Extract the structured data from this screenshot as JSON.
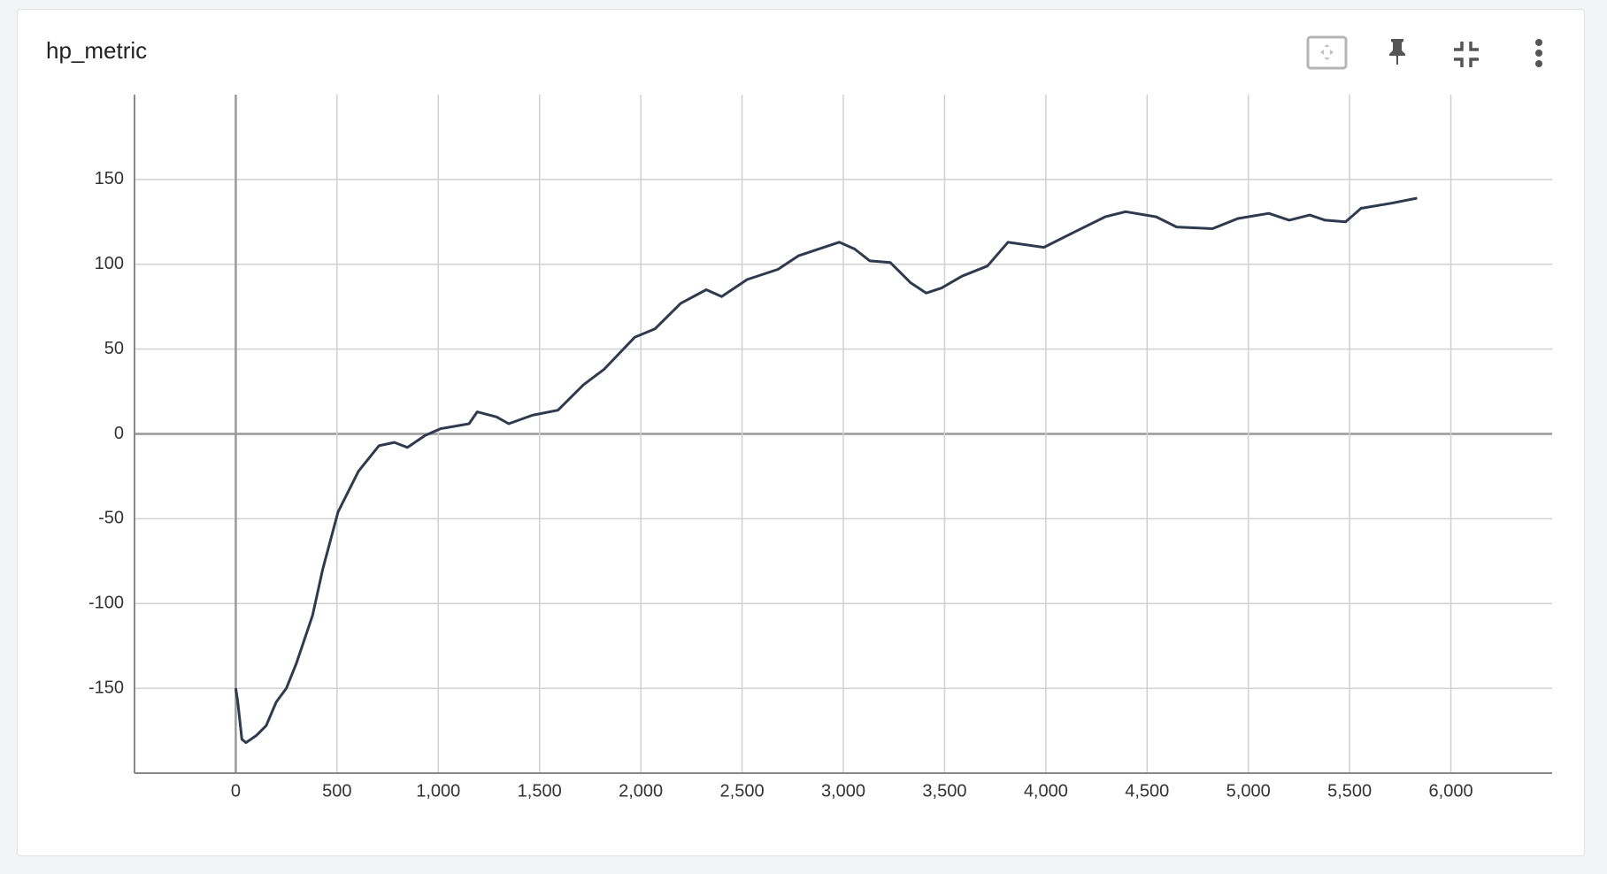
{
  "chart_data": {
    "type": "line",
    "title": "hp_metric",
    "x": [
      0,
      10,
      30,
      50,
      100,
      150,
      200,
      250,
      300,
      379,
      429,
      505,
      606,
      707,
      783,
      848,
      934,
      1010,
      1152,
      1192,
      1288,
      1348,
      1465,
      1591,
      1717,
      1818,
      1970,
      2071,
      2197,
      2323,
      2399,
      2525,
      2677,
      2778,
      2904,
      2980,
      3056,
      3131,
      3232,
      3333,
      3409,
      3485,
      3586,
      3712,
      3813,
      3990,
      4141,
      4293,
      4394,
      4545,
      4646,
      4823,
      4949,
      5101,
      5202,
      5303,
      5379,
      5480,
      5556,
      5707,
      5833
    ],
    "series": [
      {
        "name": "hp_metric",
        "color": "#2e3a4d",
        "values": [
          -150,
          -158,
          -180,
          -182,
          -178,
          -172,
          -158,
          -150,
          -135,
          -107,
          -80,
          -46,
          -22,
          -7,
          -5,
          -8,
          -1,
          3,
          6,
          13,
          10,
          6,
          11,
          14,
          29,
          38,
          57,
          62,
          77,
          85,
          81,
          91,
          97,
          105,
          110,
          113,
          109,
          102,
          101,
          89,
          83,
          86,
          93,
          99,
          113,
          110,
          119,
          128,
          131,
          128,
          122,
          121,
          127,
          130,
          126,
          129,
          126,
          125,
          133,
          136,
          139
        ]
      }
    ],
    "xlim": [
      -500,
      6500
    ],
    "ylim": [
      -200,
      200
    ],
    "xticks": [
      0,
      500,
      {
        "value": 1000,
        "label": "1,000"
      },
      {
        "value": 1500,
        "label": "1,500"
      },
      {
        "value": 2000,
        "label": "2,000"
      },
      {
        "value": 2500,
        "label": "2,500"
      },
      {
        "value": 3000,
        "label": "3,000"
      },
      {
        "value": 3500,
        "label": "3,500"
      },
      {
        "value": 4000,
        "label": "4,000"
      },
      {
        "value": 4500,
        "label": "4,500"
      },
      {
        "value": 5000,
        "label": "5,000"
      },
      {
        "value": 5500,
        "label": "5,500"
      },
      {
        "value": 6000,
        "label": "6,000"
      }
    ],
    "yticks": [
      -150,
      -100,
      -50,
      0,
      50,
      100,
      150
    ],
    "grid": true
  }
}
